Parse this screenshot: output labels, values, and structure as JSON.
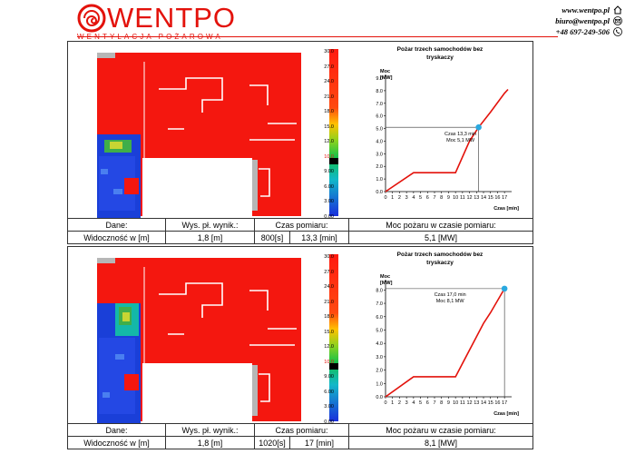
{
  "header": {
    "brand": "WENTPO",
    "tagline": "WENTYLACJA POŻAROWA",
    "website": "www.wentpo.pl",
    "email": "biuro@wentpo.pl",
    "phone": "+48 697-249-506",
    "brand_color": "#e3120b"
  },
  "scale": {
    "labels": [
      "30.0",
      "27.0",
      "24.0",
      "21.0",
      "18.0",
      "15.0",
      "12.0",
      "10.0",
      "9.00",
      "6.00",
      "3.00",
      "0.00"
    ],
    "highlight_label": "10.0",
    "highlight_color": "#e3120b"
  },
  "panels": [
    {
      "table": {
        "h_dane": "Dane:",
        "h_wys": "Wys. pł. wynik.:",
        "h_czas": "Czas pomiaru:",
        "h_moc": "Moc pożaru w czasie pomiaru:",
        "v_dane": "Widoczność w [m]",
        "v_wys": "1,8 [m]",
        "v_czas_s": "800[s]",
        "v_czas_min": "13,3 [min]",
        "v_moc": "5,1 [MW]"
      },
      "chart": {
        "title_line1": "Pożar trzech samochodów bez",
        "title_line2": "tryskaczy",
        "annot_line1": "Czas 13,3 min",
        "annot_line2": "Moc 5,1 MW",
        "ylabel_1": "Moc",
        "ylabel_2": "[MW]",
        "xlabel": "Czas [min]"
      }
    },
    {
      "table": {
        "h_dane": "Dane:",
        "h_wys": "Wys. pł. wynik.:",
        "h_czas": "Czas pomiaru:",
        "h_moc": "Moc pożaru w czasie pomiaru:",
        "v_dane": "Widoczność w [m]",
        "v_wys": "1,8 [m]",
        "v_czas_s": "1020[s]",
        "v_czas_min": "17 [min]",
        "v_moc": "8,1 [MW]"
      },
      "chart": {
        "title_line1": "Pożar trzech samochodów bez",
        "title_line2": "tryskaczy",
        "annot_line1": "Czas 17,0 min",
        "annot_line2": "Moc 8,1 MW",
        "ylabel_1": "Moc",
        "ylabel_2": "[MW]",
        "xlabel": "Czas [min]"
      }
    }
  ],
  "chart_data": [
    {
      "type": "line",
      "title": "Pożar trzech samochodów bez tryskaczy",
      "xlabel": "Czas [min]",
      "ylabel": "Moc [MW]",
      "xticks": [
        0,
        1,
        2,
        3,
        4,
        5,
        6,
        7,
        8,
        9,
        10,
        11,
        12,
        13,
        14,
        15,
        16,
        17
      ],
      "yticks": [
        0.0,
        1.0,
        2.0,
        3.0,
        4.0,
        5.0,
        6.0,
        7.0,
        8.0,
        9.0
      ],
      "xlim": [
        0,
        17.5
      ],
      "ylim": [
        0,
        9
      ],
      "x": [
        0,
        4,
        10,
        12,
        13.3,
        15,
        17,
        17.5
      ],
      "y": [
        0,
        1.5,
        1.5,
        4.0,
        5.1,
        6.3,
        7.8,
        8.1
      ],
      "marker": {
        "x": 13.3,
        "y": 5.1
      },
      "line_color": "#e3120b",
      "marker_color": "#2aa9e0"
    },
    {
      "type": "line",
      "title": "Pożar trzech samochodów bez tryskaczy",
      "xlabel": "Czas [min]",
      "ylabel": "Moc [MW]",
      "xticks": [
        0,
        1,
        2,
        3,
        4,
        5,
        6,
        7,
        8,
        9,
        10,
        11,
        12,
        13,
        14,
        15,
        16,
        17
      ],
      "yticks": [
        0.0,
        1.0,
        2.0,
        3.0,
        4.0,
        5.0,
        6.0,
        7.0,
        8.0
      ],
      "xlim": [
        0,
        17.5
      ],
      "ylim": [
        0,
        8.5
      ],
      "x": [
        0,
        4,
        10,
        12,
        14,
        15,
        17
      ],
      "y": [
        0,
        1.5,
        1.5,
        3.5,
        5.5,
        6.3,
        8.1
      ],
      "marker": {
        "x": 17,
        "y": 8.1
      },
      "line_color": "#e3120b",
      "marker_color": "#2aa9e0"
    }
  ]
}
